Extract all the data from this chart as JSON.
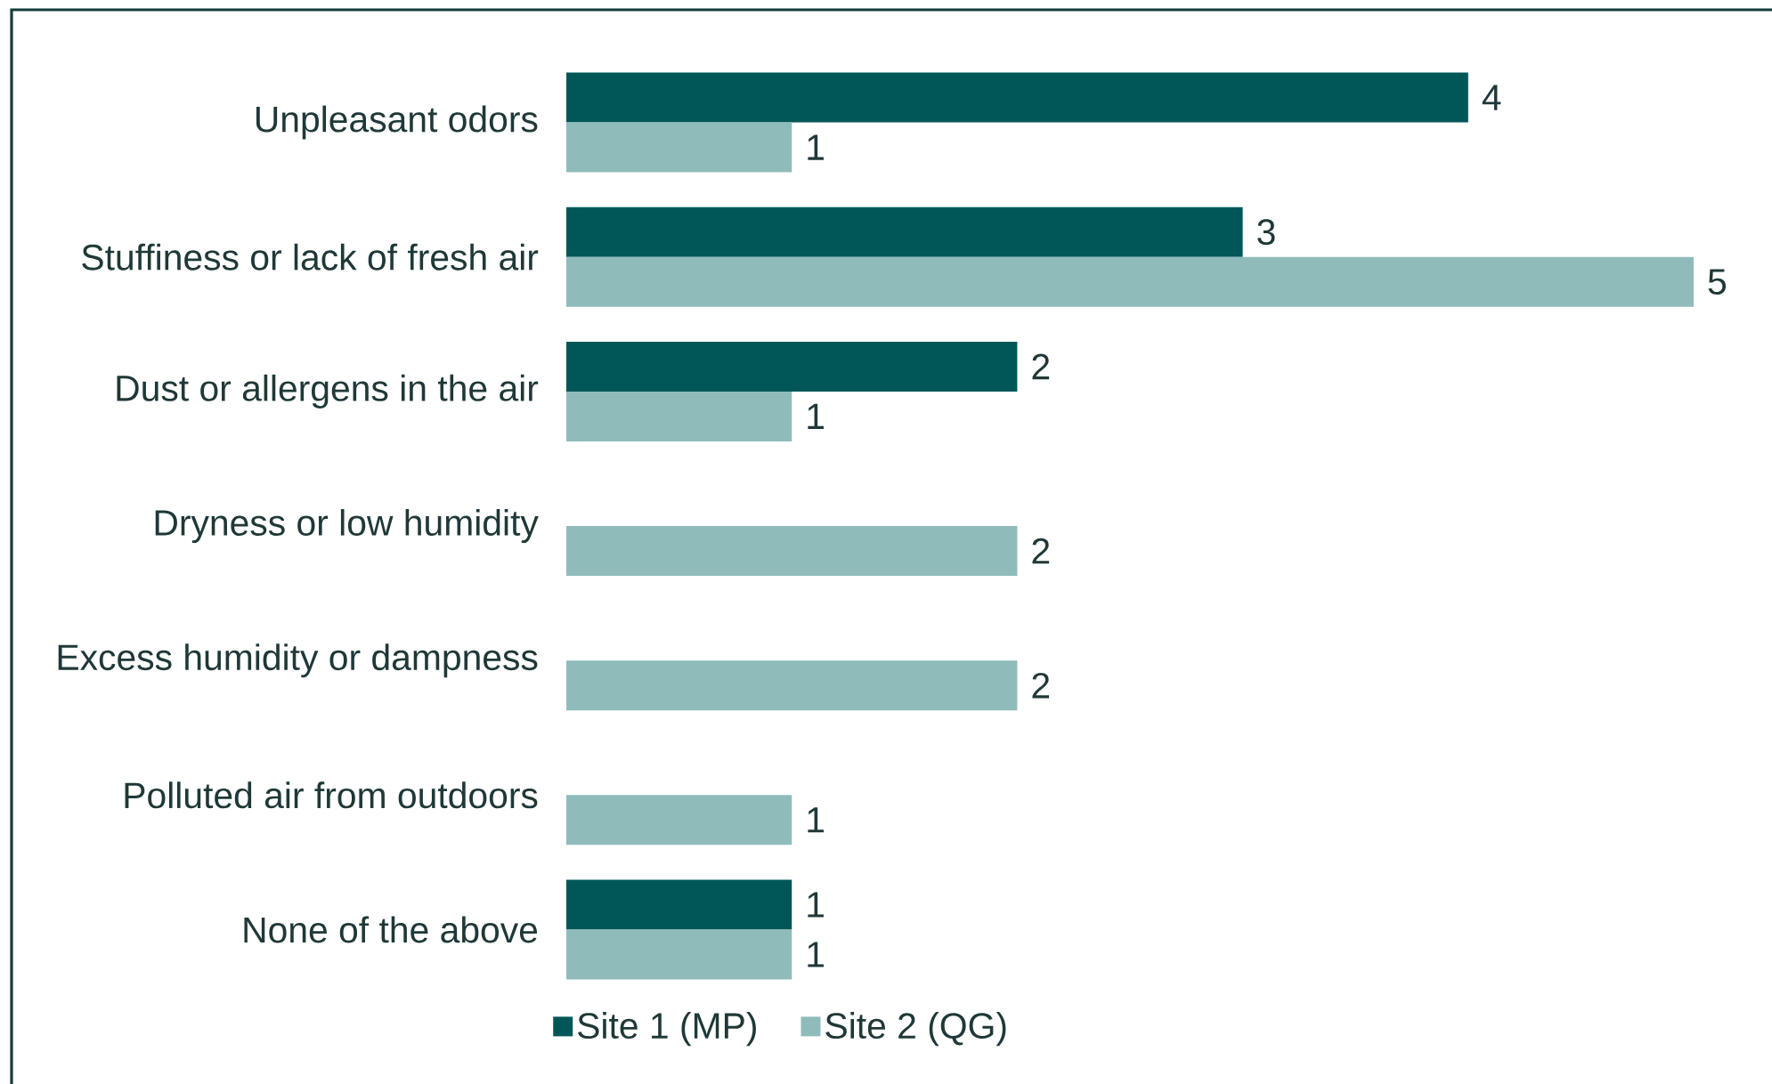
{
  "chart_data": {
    "type": "bar",
    "orientation": "horizontal",
    "categories": [
      "Unpleasant odors",
      "Stuffiness or lack of fresh air",
      "Dust or allergens in the air",
      "Dryness or low humidity",
      "Excess humidity or dampness",
      "Polluted air from outdoors",
      "None of the above"
    ],
    "series": [
      {
        "name": "Site 1 (MP)",
        "color": "#015758",
        "values": [
          4,
          3,
          2,
          null,
          null,
          null,
          1
        ]
      },
      {
        "name": "Site 2 (QG)",
        "color": "#8fbcbb",
        "values": [
          1,
          5,
          1,
          2,
          2,
          1,
          1
        ]
      }
    ],
    "data_labels": true,
    "legend": "bottom",
    "tick_labels": "y"
  }
}
